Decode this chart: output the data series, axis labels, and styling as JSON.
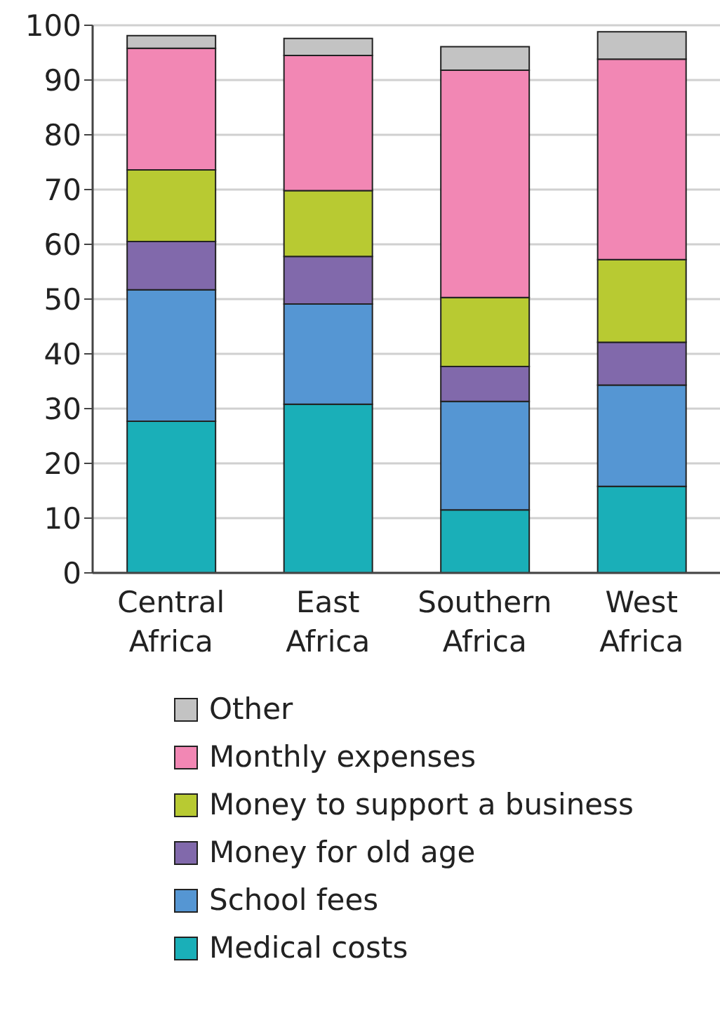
{
  "chart_data": {
    "type": "bar",
    "stacked": true,
    "categories": [
      "Central Africa",
      "East Africa",
      "Southern Africa",
      "West Africa"
    ],
    "series": [
      {
        "name": "Medical costs",
        "color": "#1aafb8",
        "values": [
          27.7,
          30.8,
          11.5,
          15.8
        ]
      },
      {
        "name": "School fees",
        "color": "#5596d3",
        "values": [
          24.0,
          18.3,
          19.8,
          18.5
        ]
      },
      {
        "name": "Money for old age",
        "color": "#8169ab",
        "values": [
          8.8,
          8.7,
          6.4,
          7.8
        ]
      },
      {
        "name": "Money to support a business",
        "color": "#b8ca32",
        "values": [
          13.1,
          12.0,
          12.6,
          15.1
        ]
      },
      {
        "name": "Monthly expenses",
        "color": "#f287b4",
        "values": [
          22.2,
          24.7,
          41.5,
          36.6
        ]
      },
      {
        "name": "Other",
        "color": "#c3c3c3",
        "values": [
          2.3,
          3.1,
          4.3,
          5.0
        ]
      }
    ],
    "ylim": [
      0,
      100
    ],
    "yticks": [
      0,
      10,
      20,
      30,
      40,
      50,
      60,
      70,
      80,
      90,
      100
    ],
    "grid": "y",
    "legend": "bottom"
  }
}
